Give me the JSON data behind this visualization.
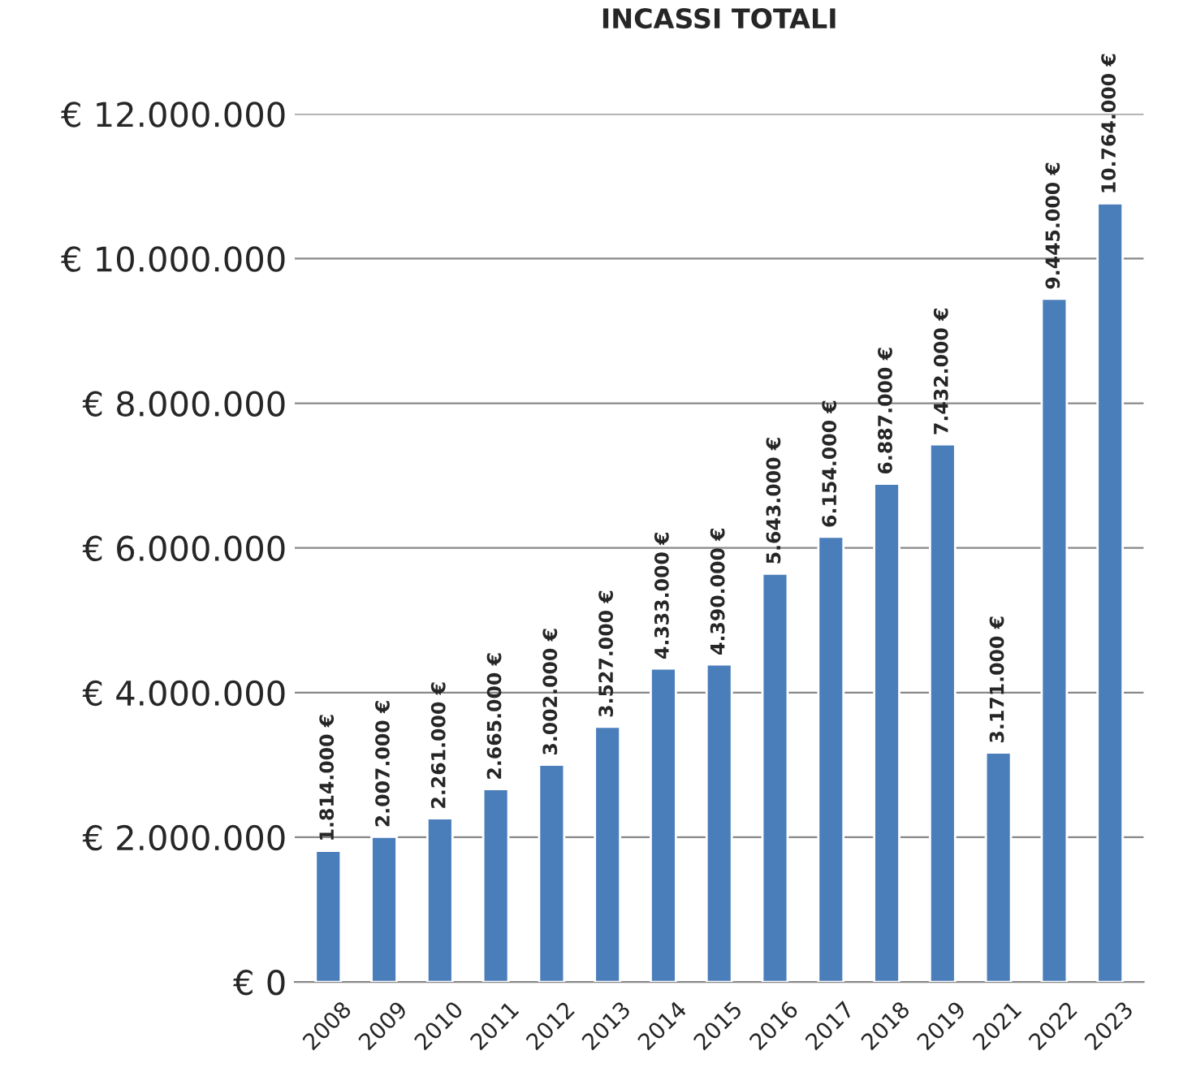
{
  "chart_data": {
    "type": "bar",
    "title": "INCASSI TOTALI",
    "categories": [
      "2008",
      "2009",
      "2010",
      "2011",
      "2012",
      "2013",
      "2014",
      "2015",
      "2016",
      "2017",
      "2018",
      "2019",
      "2021",
      "2022",
      "2023"
    ],
    "values": [
      1814000,
      2007000,
      2261000,
      2665000,
      3002000,
      3527000,
      4333000,
      4390000,
      5643000,
      6154000,
      6887000,
      7432000,
      3171000,
      9445000,
      10764000
    ],
    "value_labels": [
      "1.814.000 €",
      "2.007.000 €",
      "2.261.000 €",
      "2.665.000 €",
      "3.002.000 €",
      "3.527.000 €",
      "4.333.000 €",
      "4.390.000 €",
      "5.643.000 €",
      "6.154.000 €",
      "6.887.000 €",
      "7.432.000 €",
      "3.171.000 €",
      "9.445.000 €",
      "10.764.000 €"
    ],
    "color": "#4a7ebb",
    "ylim": [
      0,
      12000000
    ],
    "yticks": [
      {
        "value": 0,
        "label": "€ 0"
      },
      {
        "value": 2000000,
        "label": "€ 2.000.000"
      },
      {
        "value": 4000000,
        "label": "€ 4.000.000"
      },
      {
        "value": 6000000,
        "label": "€ 6.000.000"
      },
      {
        "value": 8000000,
        "label": "€ 8.000.000"
      },
      {
        "value": 10000000,
        "label": "€ 10.000.000"
      },
      {
        "value": 12000000,
        "label": "€ 12.000.000"
      }
    ],
    "grid": "y",
    "legend": false
  }
}
